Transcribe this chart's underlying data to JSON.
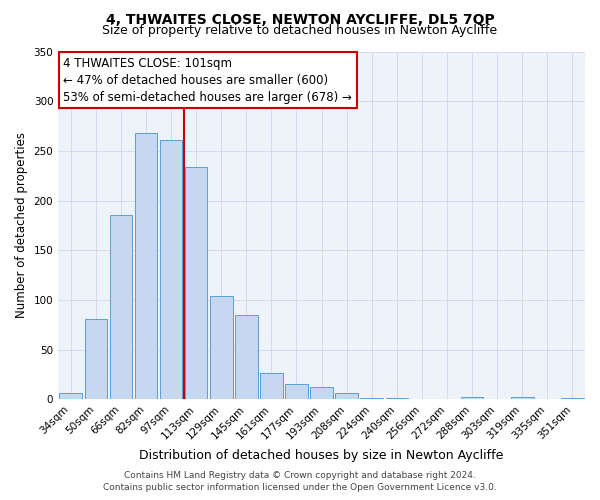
{
  "title": "4, THWAITES CLOSE, NEWTON AYCLIFFE, DL5 7QP",
  "subtitle": "Size of property relative to detached houses in Newton Aycliffe",
  "xlabel": "Distribution of detached houses by size in Newton Aycliffe",
  "ylabel": "Number of detached properties",
  "categories": [
    "34sqm",
    "50sqm",
    "66sqm",
    "82sqm",
    "97sqm",
    "113sqm",
    "129sqm",
    "145sqm",
    "161sqm",
    "177sqm",
    "193sqm",
    "208sqm",
    "224sqm",
    "240sqm",
    "256sqm",
    "272sqm",
    "288sqm",
    "303sqm",
    "319sqm",
    "335sqm",
    "351sqm"
  ],
  "values": [
    6,
    81,
    186,
    268,
    261,
    234,
    104,
    85,
    27,
    16,
    13,
    6,
    1,
    1,
    0,
    0,
    2,
    0,
    2,
    0,
    1
  ],
  "bar_color": "#c5d8f0",
  "bar_edge_color": "#5a9fd4",
  "vline_color": "#cc0000",
  "vline_x": 4.5,
  "annotation_title": "4 THWAITES CLOSE: 101sqm",
  "annotation_line1": "← 47% of detached houses are smaller (600)",
  "annotation_line2": "53% of semi-detached houses are larger (678) →",
  "annotation_box_color": "#ffffff",
  "annotation_box_edge": "#cc0000",
  "ylim": [
    0,
    350
  ],
  "yticks": [
    0,
    50,
    100,
    150,
    200,
    250,
    300,
    350
  ],
  "footer_line1": "Contains HM Land Registry data © Crown copyright and database right 2024.",
  "footer_line2": "Contains public sector information licensed under the Open Government Licence v3.0.",
  "title_fontsize": 10,
  "subtitle_fontsize": 9,
  "xlabel_fontsize": 9,
  "ylabel_fontsize": 8.5,
  "tick_fontsize": 7.5,
  "annotation_fontsize": 8.5,
  "footer_fontsize": 6.5,
  "bg_color": "#eef3fa"
}
